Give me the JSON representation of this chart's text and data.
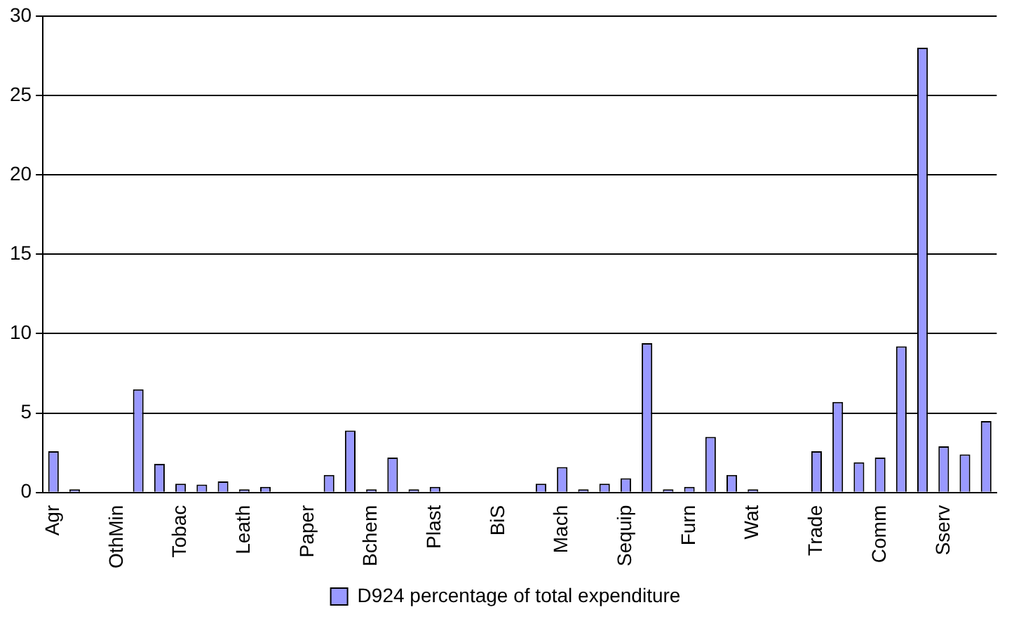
{
  "chart_data": {
    "type": "bar",
    "categories": [
      "Agr",
      null,
      null,
      "OthMin",
      null,
      null,
      "Tobac",
      null,
      null,
      "Leath",
      null,
      null,
      "Paper",
      null,
      null,
      "Bchem",
      null,
      null,
      "Plast",
      null,
      null,
      "BiS",
      null,
      null,
      "Mach",
      null,
      null,
      "Sequip",
      null,
      null,
      "Furn",
      null,
      null,
      "Wat",
      null,
      null,
      "Trade",
      null,
      null,
      "Comm",
      null,
      null,
      "Sserv",
      null,
      null
    ],
    "series": [
      {
        "name": "D924 percentage of total expenditure",
        "color": "#9999ff",
        "values": [
          2.6,
          0.2,
          null,
          null,
          6.5,
          1.8,
          0.55,
          0.5,
          0.7,
          0.2,
          0.35,
          null,
          null,
          1.1,
          3.9,
          0.2,
          2.2,
          0.2,
          0.35,
          null,
          null,
          null,
          null,
          0.55,
          1.6,
          0.2,
          0.55,
          0.9,
          9.4,
          0.2,
          0.35,
          3.5,
          1.1,
          0.2,
          null,
          null,
          2.6,
          5.7,
          1.9,
          2.2,
          9.2,
          28.0,
          2.9,
          2.4,
          4.5
        ]
      }
    ],
    "ylim": [
      0,
      30
    ],
    "yticks": [
      0,
      5,
      10,
      15,
      20,
      25,
      30
    ],
    "grid": "y",
    "legend": "bottom"
  }
}
